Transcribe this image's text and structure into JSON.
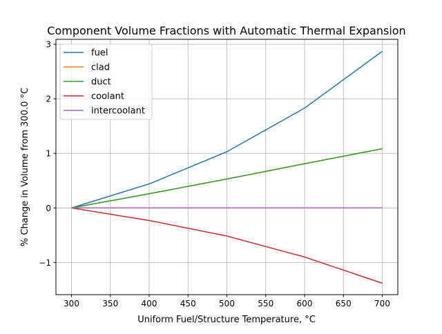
{
  "chart_data": {
    "type": "line",
    "title": "Component Volume Fractions with Automatic Thermal Expansion",
    "xlabel": "Uniform Fuel/Structure Temperature, °C",
    "ylabel": "% Change in Volume from 300.0 °C",
    "xlim": [
      280,
      720
    ],
    "ylim": [
      -1.59,
      3.09
    ],
    "xticks": [
      300,
      350,
      400,
      450,
      500,
      550,
      600,
      650,
      700
    ],
    "yticks": [
      -1,
      0,
      1,
      2,
      3
    ],
    "ytick_labels": [
      "−1",
      "0",
      "1",
      "2",
      "3"
    ],
    "grid": true,
    "legend_position": "upper-left",
    "x": [
      300,
      400,
      500,
      600,
      700
    ],
    "series": [
      {
        "name": "fuel",
        "color": "#1f77b4",
        "values": [
          0,
          0.44,
          1.03,
          1.83,
          2.87
        ]
      },
      {
        "name": "clad",
        "color": "#ff7f0e",
        "values": [
          0,
          0.26,
          0.53,
          0.81,
          1.085
        ]
      },
      {
        "name": "duct",
        "color": "#2ca02c",
        "values": [
          0,
          0.26,
          0.53,
          0.81,
          1.085
        ]
      },
      {
        "name": "coolant",
        "color": "#d62728",
        "values": [
          0,
          -0.23,
          -0.515,
          -0.9,
          -1.38
        ]
      },
      {
        "name": "intercoolant",
        "color": "#9467bd",
        "values": [
          0,
          0,
          0,
          0,
          0
        ]
      }
    ]
  }
}
